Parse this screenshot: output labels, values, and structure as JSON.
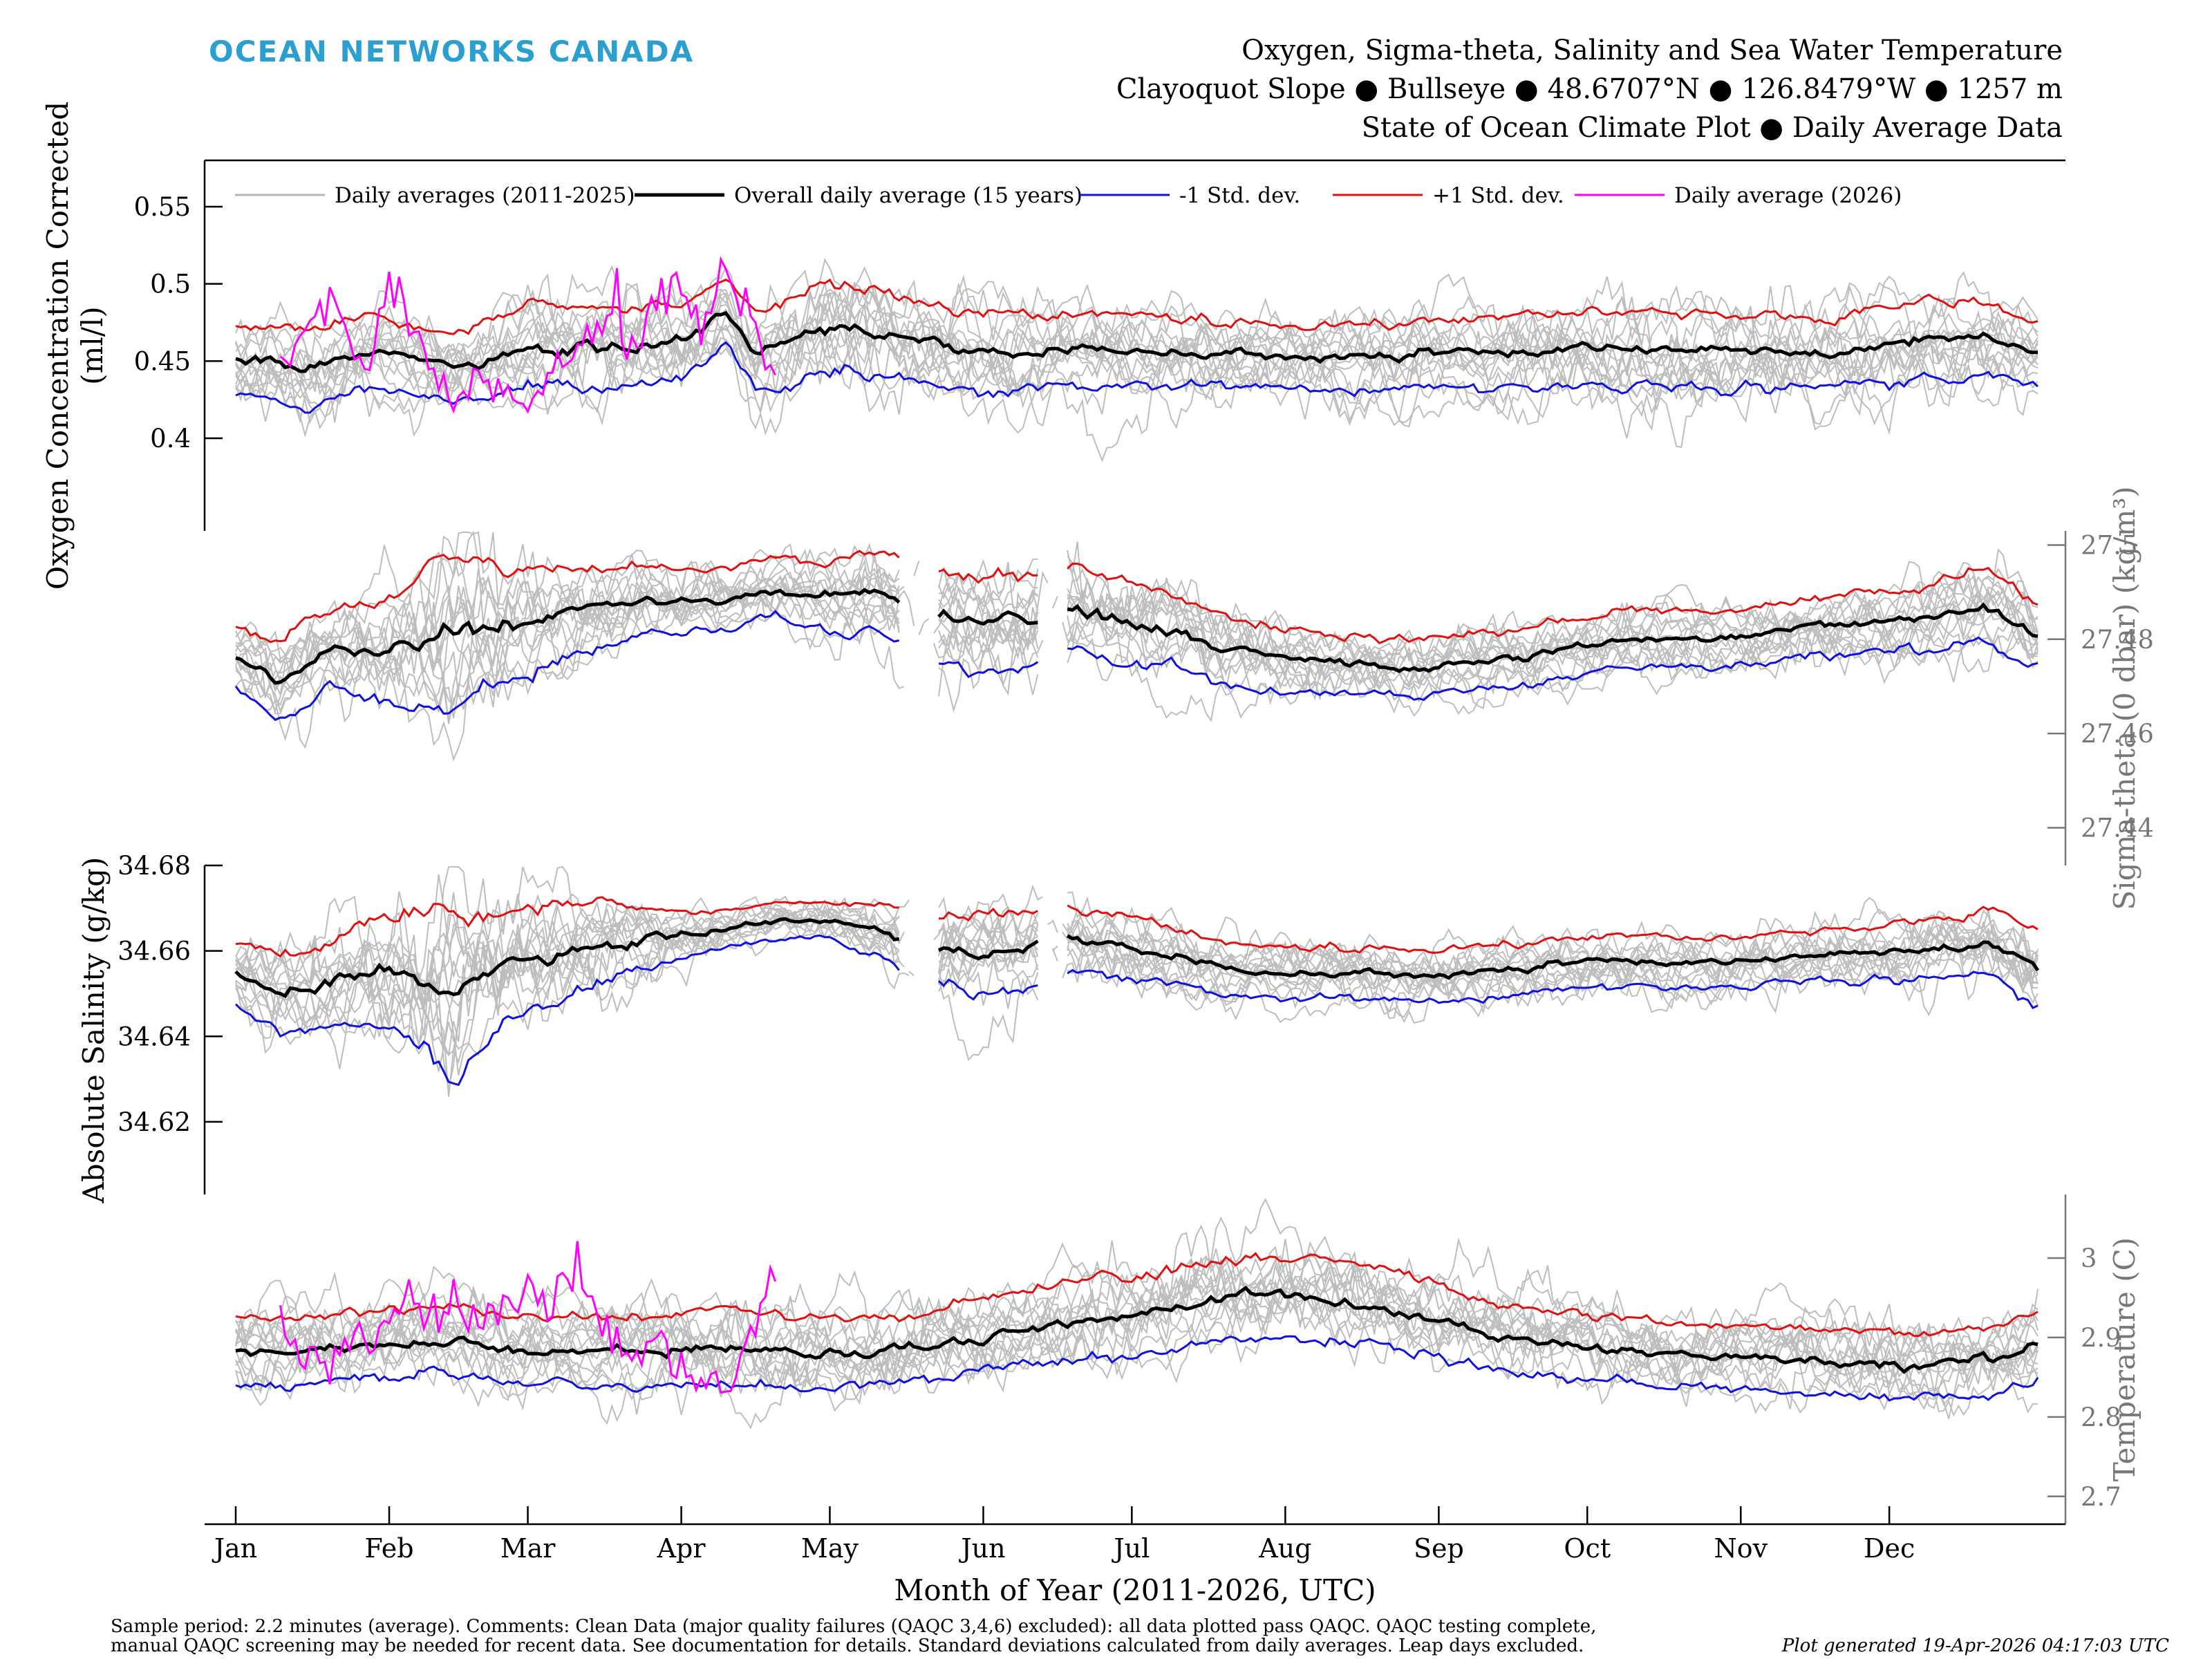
{
  "header": {
    "brand": "OCEAN NETWORKS CANADA",
    "brand_color": "#2a9fd0",
    "title_lines": [
      "Oxygen, Sigma-theta, Salinity and Sea Water Temperature",
      "Clayoquot Slope ● Bullseye ● 48.6707°N ● 126.8479°W ● 1257 m",
      "State of Ocean Climate Plot ● Daily Average Data"
    ]
  },
  "footer": {
    "note_lines": [
      "Sample period: 2.2 minutes (average). Comments: Clean Data (major quality failures (QAQC 3,4,6) excluded): all data plotted pass QAQC. QAQC testing complete,",
      "manual QAQC screening may be needed for recent data. See documentation for details. Standard deviations calculated from daily averages. Leap days excluded."
    ],
    "generated": "Plot generated 19-Apr-2026 04:17:03 UTC"
  },
  "chart_data": {
    "type": "line",
    "xlabel": "Month of Year (2011-2026, UTC)",
    "x_tick_labels": [
      "Jan",
      "Feb",
      "Mar",
      "Apr",
      "May",
      "Jun",
      "Jul",
      "Aug",
      "Sep",
      "Oct",
      "Nov",
      "Dec"
    ],
    "x_tick_days": [
      1,
      32,
      60,
      91,
      121,
      152,
      182,
      213,
      244,
      274,
      305,
      335
    ],
    "xlim": [
      1,
      365
    ],
    "legend": {
      "placement": "top",
      "entries": [
        {
          "label": "Daily averages (2011-2025)",
          "color": "#b4b4b4"
        },
        {
          "label": "Overall daily average (15 years)",
          "color": "#000000"
        },
        {
          "label": "-1 Std. dev.",
          "color": "#1010e0"
        },
        {
          "label": "+1 Std. dev.",
          "color": "#e01010"
        },
        {
          "label": "Daily average (2026)",
          "color": "#ff00ff"
        }
      ]
    },
    "panels": [
      {
        "id": "oxygen",
        "side": "left",
        "ylabel_lines": [
          "Oxygen Concentration Corrected",
          "(ml/l)"
        ],
        "ylim": [
          0.34,
          0.58
        ],
        "yticks": [
          0.4,
          0.45,
          0.5,
          0.55
        ],
        "ytick_labels": [
          "0.4",
          "0.45",
          "0.5",
          "0.55"
        ],
        "knots_days": [
          1,
          15,
          30,
          45,
          60,
          75,
          91,
          100,
          106,
          121,
          136,
          152,
          182,
          213,
          244,
          274,
          305,
          320,
          335,
          345,
          355,
          365
        ],
        "mean": [
          0.452,
          0.445,
          0.457,
          0.445,
          0.46,
          0.458,
          0.462,
          0.482,
          0.455,
          0.472,
          0.465,
          0.455,
          0.458,
          0.452,
          0.455,
          0.458,
          0.457,
          0.455,
          0.46,
          0.465,
          0.465,
          0.455
        ],
        "std": [
          0.022,
          0.025,
          0.022,
          0.022,
          0.025,
          0.028,
          0.022,
          0.02,
          0.025,
          0.03,
          0.025,
          0.025,
          0.023,
          0.02,
          0.022,
          0.025,
          0.025,
          0.023,
          0.025,
          0.025,
          0.023,
          0.02
        ],
        "current_2026": {
          "days": [
            10,
            15,
            20,
            25,
            28,
            32,
            36,
            40,
            45,
            50,
            55,
            60,
            65,
            70,
            75,
            78,
            80,
            85,
            90,
            95,
            100,
            105,
            110
          ],
          "values": [
            0.45,
            0.47,
            0.49,
            0.46,
            0.45,
            0.5,
            0.48,
            0.45,
            0.42,
            0.44,
            0.44,
            0.42,
            0.45,
            0.46,
            0.47,
            0.5,
            0.44,
            0.49,
            0.5,
            0.47,
            0.51,
            0.48,
            0.44
          ]
        }
      },
      {
        "id": "sigma",
        "side": "right",
        "ylabel_lines": [
          "Sigma-theta (0 dbar) (kg/m³)"
        ],
        "ylim": [
          27.432,
          27.503
        ],
        "yticks": [
          27.44,
          27.46,
          27.48,
          27.5
        ],
        "ytick_labels": [
          "27.44",
          "27.46",
          "27.48",
          "27.5"
        ],
        "knots_days": [
          1,
          10,
          20,
          30,
          40,
          45,
          55,
          70,
          85,
          100,
          110,
          121,
          130,
          140,
          150,
          160,
          170,
          180,
          190,
          200,
          210,
          220,
          240,
          260,
          280,
          300,
          320,
          340,
          355,
          365
        ],
        "mean": [
          27.476,
          27.472,
          27.478,
          27.478,
          27.48,
          27.482,
          27.483,
          27.486,
          27.488,
          27.488,
          27.491,
          27.489,
          27.49,
          27.486,
          27.483,
          27.484,
          27.487,
          27.484,
          27.482,
          27.478,
          27.476,
          27.475,
          27.474,
          27.476,
          27.48,
          27.48,
          27.483,
          27.484,
          27.487,
          27.481
        ],
        "std": [
          0.006,
          0.008,
          0.008,
          0.01,
          0.014,
          0.017,
          0.012,
          0.009,
          0.007,
          0.006,
          0.006,
          0.007,
          0.008,
          0.009,
          0.01,
          0.01,
          0.009,
          0.009,
          0.008,
          0.008,
          0.007,
          0.006,
          0.006,
          0.006,
          0.006,
          0.006,
          0.006,
          0.007,
          0.008,
          0.007
        ],
        "gaps": [
          [
            136,
            142
          ],
          [
            164,
            168
          ]
        ]
      },
      {
        "id": "salinity",
        "side": "left",
        "ylabel_lines": [
          "Absolute Salinity (g/kg)"
        ],
        "ylim": [
          34.603,
          34.68
        ],
        "yticks": [
          34.62,
          34.64,
          34.66,
          34.68
        ],
        "ytick_labels": [
          "34.62",
          "34.64",
          "34.66",
          "34.68"
        ],
        "knots_days": [
          1,
          10,
          20,
          30,
          40,
          45,
          55,
          70,
          85,
          100,
          110,
          121,
          130,
          140,
          150,
          160,
          170,
          180,
          190,
          200,
          210,
          220,
          240,
          260,
          280,
          300,
          320,
          340,
          355,
          365
        ],
        "mean": [
          34.655,
          34.65,
          34.652,
          34.656,
          34.652,
          34.65,
          34.656,
          34.661,
          34.663,
          34.665,
          34.667,
          34.667,
          34.665,
          34.661,
          34.659,
          34.66,
          34.663,
          34.661,
          34.659,
          34.656,
          34.655,
          34.655,
          34.654,
          34.656,
          34.658,
          34.657,
          34.659,
          34.66,
          34.662,
          34.656
        ],
        "std": [
          0.007,
          0.009,
          0.01,
          0.012,
          0.016,
          0.019,
          0.013,
          0.01,
          0.007,
          0.004,
          0.004,
          0.004,
          0.006,
          0.008,
          0.009,
          0.009,
          0.007,
          0.007,
          0.007,
          0.006,
          0.006,
          0.006,
          0.006,
          0.006,
          0.006,
          0.006,
          0.006,
          0.007,
          0.008,
          0.009
        ],
        "gaps": [
          [
            136,
            142
          ],
          [
            164,
            168
          ]
        ]
      },
      {
        "id": "temperature",
        "side": "right",
        "ylabel_lines": [
          "Temperature (C)"
        ],
        "ylim": [
          2.665,
          3.08
        ],
        "yticks": [
          2.7,
          2.8,
          2.9,
          3
        ],
        "ytick_labels": [
          "2.7",
          "2.8",
          "2.9",
          "3"
        ],
        "knots_days": [
          1,
          20,
          40,
          60,
          80,
          100,
          115,
          130,
          150,
          170,
          185,
          200,
          213,
          230,
          245,
          260,
          280,
          300,
          320,
          340,
          355,
          365
        ],
        "mean": [
          2.88,
          2.885,
          2.9,
          2.885,
          2.882,
          2.888,
          2.878,
          2.88,
          2.9,
          2.92,
          2.93,
          2.95,
          2.952,
          2.94,
          2.92,
          2.895,
          2.885,
          2.875,
          2.872,
          2.865,
          2.87,
          2.888
        ],
        "std": [
          0.042,
          0.042,
          0.045,
          0.042,
          0.044,
          0.046,
          0.046,
          0.045,
          0.045,
          0.048,
          0.05,
          0.05,
          0.048,
          0.047,
          0.045,
          0.042,
          0.04,
          0.04,
          0.04,
          0.04,
          0.04,
          0.045
        ],
        "current_2026": {
          "days": [
            10,
            15,
            20,
            25,
            30,
            35,
            40,
            45,
            50,
            55,
            60,
            65,
            70,
            75,
            80,
            85,
            90,
            95,
            100,
            105,
            110
          ],
          "values": [
            2.92,
            2.86,
            2.88,
            2.9,
            2.91,
            2.96,
            2.93,
            2.96,
            2.91,
            2.93,
            2.97,
            2.94,
            2.99,
            2.92,
            2.87,
            2.89,
            2.88,
            2.84,
            2.83,
            2.9,
            2.98
          ]
        }
      }
    ]
  }
}
